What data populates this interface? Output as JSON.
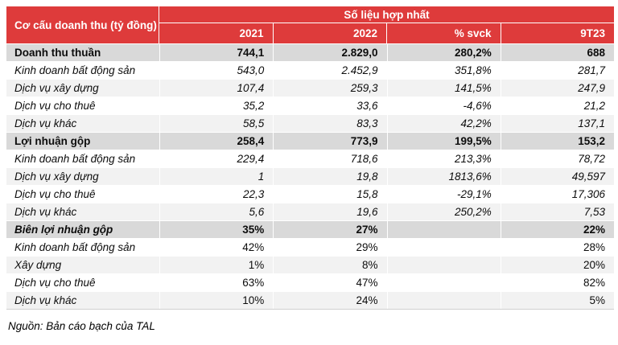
{
  "table": {
    "corner_header": "Cơ cấu doanh thu (tỷ đồng)",
    "group_header": "Số liệu hợp nhất",
    "columns": [
      "2021",
      "2022",
      "% svck",
      "9T23"
    ],
    "rows": [
      {
        "label": "Doanh thu thuần",
        "kind": "total",
        "label_style": "bold",
        "value_style": "bold",
        "values": [
          "744,1",
          "2.829,0",
          "280,2%",
          "688"
        ]
      },
      {
        "label": "Kinh doanh bất động sản",
        "kind": "item",
        "label_style": "italic",
        "value_style": "italic",
        "values": [
          "543,0",
          "2.452,9",
          "351,8%",
          "281,7"
        ]
      },
      {
        "label": "Dịch vụ xây dựng",
        "kind": "item",
        "label_style": "italic",
        "value_style": "italic",
        "values": [
          "107,4",
          "259,3",
          "141,5%",
          "247,9"
        ]
      },
      {
        "label": "Dịch vụ cho thuê",
        "kind": "item",
        "label_style": "italic",
        "value_style": "italic",
        "values": [
          "35,2",
          "33,6",
          "-4,6%",
          "21,2"
        ]
      },
      {
        "label": "Dịch vụ khác",
        "kind": "item",
        "label_style": "italic",
        "value_style": "italic",
        "values": [
          "58,5",
          "83,3",
          "42,2%",
          "137,1"
        ]
      },
      {
        "label": "Lợi nhuận gộp",
        "kind": "total",
        "label_style": "bold",
        "value_style": "bold",
        "values": [
          "258,4",
          "773,9",
          "199,5%",
          "153,2"
        ]
      },
      {
        "label": "Kinh doanh bất động sản",
        "kind": "item",
        "label_style": "italic",
        "value_style": "italic",
        "values": [
          "229,4",
          "718,6",
          "213,3%",
          "78,72"
        ]
      },
      {
        "label": "Dịch vụ xây dựng",
        "kind": "item",
        "label_style": "italic",
        "value_style": "italic",
        "values": [
          "1",
          "19,8",
          "1813,6%",
          "49,597"
        ]
      },
      {
        "label": "Dịch vụ cho thuê",
        "kind": "item",
        "label_style": "italic",
        "value_style": "italic",
        "values": [
          "22,3",
          "15,8",
          "-29,1%",
          "17,306"
        ]
      },
      {
        "label": "Dịch vụ khác",
        "kind": "item",
        "label_style": "italic",
        "value_style": "italic",
        "values": [
          "5,6",
          "19,6",
          "250,2%",
          "7,53"
        ]
      },
      {
        "label": "Biên lợi nhuận gộp",
        "kind": "total",
        "label_style": "bold-italic",
        "value_style": "bold",
        "values": [
          "35%",
          "27%",
          "",
          "22%"
        ]
      },
      {
        "label": "Kinh doanh bất động sản",
        "kind": "item",
        "label_style": "italic",
        "value_style": "normal",
        "values": [
          "42%",
          "29%",
          "",
          "28%"
        ]
      },
      {
        "label": "Xây dựng",
        "kind": "item",
        "label_style": "italic",
        "value_style": "normal",
        "values": [
          "1%",
          "8%",
          "",
          "20%"
        ]
      },
      {
        "label": "Dịch vụ cho thuê",
        "kind": "item",
        "label_style": "italic",
        "value_style": "normal",
        "values": [
          "63%",
          "47%",
          "",
          "82%"
        ]
      },
      {
        "label": "Dịch vụ khác",
        "kind": "item",
        "label_style": "italic",
        "value_style": "normal",
        "values": [
          "10%",
          "24%",
          "",
          "5%"
        ]
      }
    ]
  },
  "source_note": "Nguồn: Bản cáo bạch của TAL",
  "colors": {
    "header_red": "#DE3B3B",
    "total_row_gray": "#D9D9D9",
    "stripe_gray": "#F2F2F2"
  }
}
